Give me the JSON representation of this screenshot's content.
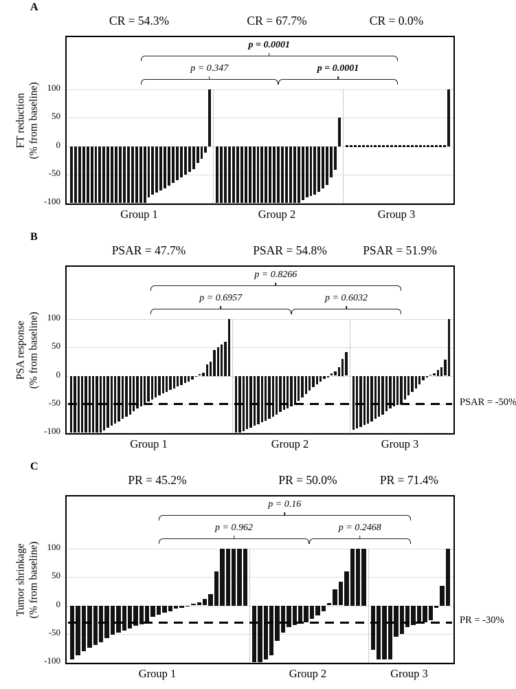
{
  "chart_data": [
    {
      "type": "bar",
      "subtype": "waterfall",
      "panel_letter": "A",
      "rates": [
        "CR = 54.3%",
        "CR = 67.7%",
        "CR = 0.0%"
      ],
      "ylabel_lines": [
        "FT reduction",
        "(% from baseline)"
      ],
      "yticks": [
        100,
        50,
        0,
        -50,
        -100
      ],
      "ylim": [
        -100,
        100
      ],
      "grid": true,
      "comparisons": [
        {
          "label": "p = 0.0001",
          "bold": true,
          "from": 0,
          "to": 2,
          "level": 1
        },
        {
          "label": "p = 0.347",
          "bold": false,
          "from": 0,
          "to": 1,
          "level": 2
        },
        {
          "label": "p = 0.0001",
          "bold": true,
          "from": 1,
          "to": 2,
          "level": 2
        }
      ],
      "groups": [
        {
          "name": "Group 1",
          "values": [
            -100,
            -100,
            -100,
            -100,
            -100,
            -100,
            -100,
            -100,
            -100,
            -100,
            -100,
            -100,
            -100,
            -100,
            -100,
            -100,
            -100,
            -100,
            -100,
            -90,
            -85,
            -82,
            -78,
            -75,
            -70,
            -65,
            -60,
            -55,
            -50,
            -45,
            -40,
            -30,
            -22,
            -12,
            100
          ]
        },
        {
          "name": "Group 2",
          "values": [
            -100,
            -100,
            -100,
            -100,
            -100,
            -100,
            -100,
            -100,
            -100,
            -100,
            -100,
            -100,
            -100,
            -100,
            -100,
            -100,
            -100,
            -100,
            -100,
            -100,
            -100,
            -95,
            -90,
            -88,
            -85,
            -80,
            -75,
            -68,
            -55,
            -42,
            50
          ]
        },
        {
          "name": "Group 3",
          "values": [
            0,
            0,
            0,
            0,
            0,
            0,
            0,
            0,
            0,
            0,
            0,
            0,
            0,
            0,
            0,
            0,
            0,
            0,
            0,
            0,
            0,
            0,
            0,
            0,
            0,
            100
          ]
        }
      ],
      "threshold": null
    },
    {
      "type": "bar",
      "subtype": "waterfall",
      "panel_letter": "B",
      "rates": [
        "PSAR = 47.7%",
        "PSAR = 54.8%",
        "PSAR = 51.9%"
      ],
      "ylabel_lines": [
        "PSA response",
        "(% from baseline)"
      ],
      "yticks": [
        100,
        50,
        0,
        -50,
        -100
      ],
      "ylim": [
        -100,
        100
      ],
      "grid": true,
      "comparisons": [
        {
          "label": "p = 0.8266",
          "bold": false,
          "from": 0,
          "to": 2,
          "level": 1
        },
        {
          "label": "p = 0.6957",
          "bold": false,
          "from": 0,
          "to": 1,
          "level": 2
        },
        {
          "label": "p = 0.6032",
          "bold": false,
          "from": 1,
          "to": 2,
          "level": 2
        }
      ],
      "groups": [
        {
          "name": "Group 1",
          "values": [
            -100,
            -100,
            -100,
            -100,
            -100,
            -100,
            -100,
            -100,
            -100,
            -96,
            -92,
            -88,
            -84,
            -80,
            -76,
            -72,
            -68,
            -63,
            -58,
            -54,
            -51,
            -46,
            -42,
            -38,
            -34,
            -31,
            -28,
            -25,
            -22,
            -19,
            -16,
            -13,
            -10,
            -7,
            -2,
            3,
            5,
            20,
            25,
            45,
            50,
            55,
            60,
            100
          ]
        },
        {
          "name": "Group 2",
          "values": [
            -100,
            -100,
            -97,
            -94,
            -91,
            -88,
            -85,
            -82,
            -79,
            -76,
            -72,
            -68,
            -64,
            -60,
            -57,
            -54,
            -51,
            -44,
            -38,
            -32,
            -26,
            -20,
            -15,
            -10,
            -6,
            -3,
            4,
            8,
            15,
            30,
            42
          ]
        },
        {
          "name": "Group 3",
          "values": [
            -95,
            -93,
            -90,
            -87,
            -84,
            -80,
            -76,
            -72,
            -68,
            -63,
            -58,
            -54,
            -51,
            -50,
            -42,
            -35,
            -28,
            -22,
            -15,
            -8,
            -3,
            2,
            4,
            10,
            15,
            28,
            100
          ]
        }
      ],
      "threshold": {
        "value": -50,
        "label": "PSAR = -50%"
      }
    },
    {
      "type": "bar",
      "subtype": "waterfall",
      "panel_letter": "C",
      "rates": [
        "PR = 45.2%",
        "PR = 50.0%",
        "PR = 71.4%"
      ],
      "ylabel_lines": [
        "Tumor shrinkage",
        "(% from baseline)"
      ],
      "yticks": [
        100,
        50,
        0,
        -50,
        -100
      ],
      "ylim": [
        -100,
        100
      ],
      "grid": true,
      "comparisons": [
        {
          "label": "p = 0.16",
          "bold": false,
          "from": 0,
          "to": 2,
          "level": 1
        },
        {
          "label": "p = 0.962",
          "bold": false,
          "from": 0,
          "to": 1,
          "level": 2
        },
        {
          "label": "p = 0.2468",
          "bold": false,
          "from": 1,
          "to": 2,
          "level": 2
        }
      ],
      "groups": [
        {
          "name": "Group 1",
          "values": [
            -95,
            -88,
            -80,
            -75,
            -70,
            -65,
            -58,
            -52,
            -48,
            -44,
            -40,
            -36,
            -33,
            -30,
            -20,
            -16,
            -13,
            -10,
            -6,
            -4,
            -2,
            3,
            6,
            12,
            20,
            60,
            100,
            100,
            100,
            100,
            100
          ]
        },
        {
          "name": "Group 2",
          "values": [
            -100,
            -100,
            -95,
            -88,
            -62,
            -48,
            -38,
            -34,
            -32,
            -30,
            -24,
            -18,
            -10,
            4,
            28,
            42,
            60,
            100,
            100,
            100
          ]
        },
        {
          "name": "Group 3",
          "values": [
            -78,
            -95,
            -95,
            -95,
            -55,
            -50,
            -38,
            -34,
            -32,
            -30,
            -26,
            -4,
            35,
            100
          ]
        }
      ],
      "threshold": {
        "value": -30,
        "label": "PR = -30%"
      }
    }
  ]
}
